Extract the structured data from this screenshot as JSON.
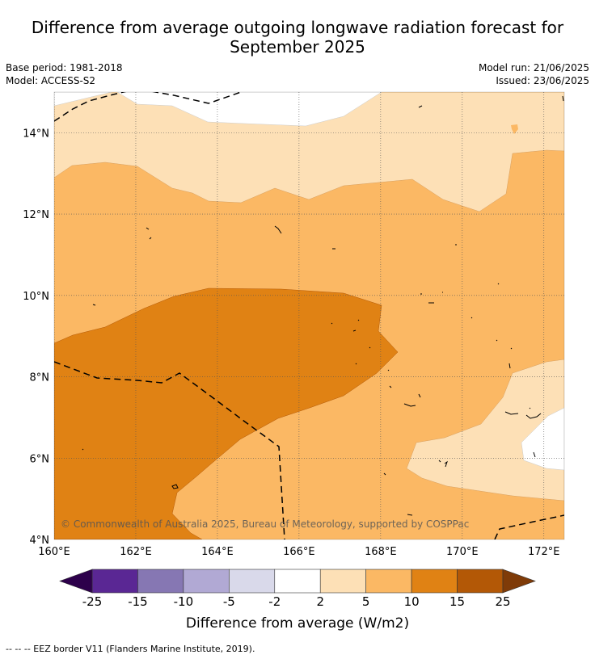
{
  "title_line1": "Difference from average outgoing longwave radiation forecast for",
  "title_line2": "September 2025",
  "meta": {
    "base_period": "Base period: 1981-2018",
    "model": "Model: ACCESS-S2",
    "model_run": "Model run: 21/06/2025",
    "issued": "Issued: 23/06/2025"
  },
  "map": {
    "lon_labels": [
      "160°E",
      "162°E",
      "164°E",
      "166°E",
      "168°E",
      "170°E",
      "172°E"
    ],
    "lat_labels": [
      "4°N",
      "6°N",
      "8°N",
      "10°N",
      "12°N",
      "14°N"
    ],
    "lon_range": [
      160,
      172.5
    ],
    "lat_range": [
      4,
      15
    ],
    "copyright": "© Commonwealth of Australia 2025, Bureau of Meteorology, supported by COSPPac"
  },
  "colorbar": {
    "bins": [
      {
        "from": -25,
        "to": -15,
        "color": "#5a2794"
      },
      {
        "from": -15,
        "to": -10,
        "color": "#8677b3"
      },
      {
        "from": -10,
        "to": -5,
        "color": "#b1a9d4"
      },
      {
        "from": -5,
        "to": -2,
        "color": "#d9d9ea"
      },
      {
        "from": -2,
        "to": 2,
        "color": "#ffffff"
      },
      {
        "from": 2,
        "to": 5,
        "color": "#fde0b6"
      },
      {
        "from": 5,
        "to": 10,
        "color": "#fbb864"
      },
      {
        "from": 10,
        "to": 15,
        "color": "#e08214"
      },
      {
        "from": 15,
        "to": 25,
        "color": "#b35806"
      }
    ],
    "under_color": "#2d004b",
    "over_color": "#7f3b08",
    "tick_labels": [
      "-25",
      "-15",
      "-10",
      "-5",
      "-2",
      "2",
      "5",
      "10",
      "15",
      "25"
    ],
    "title": "Difference from average (W/m2)"
  },
  "footnote": "-- -- -- EEZ border V11 (Flanders Marine Institute, 2019)."
}
